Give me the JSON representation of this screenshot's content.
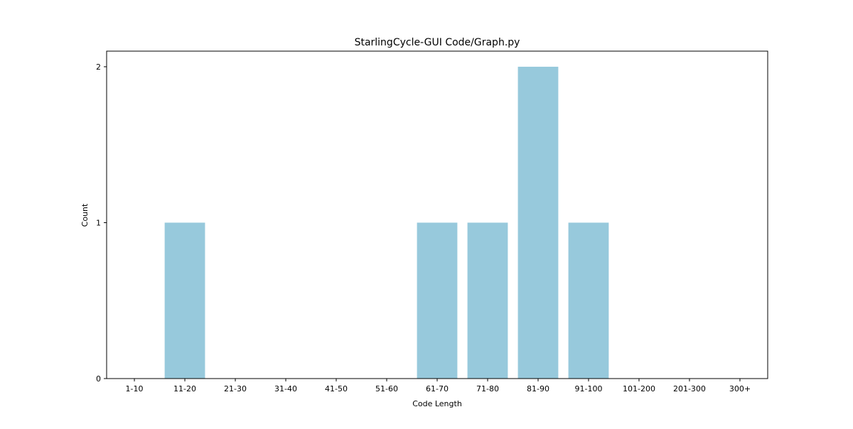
{
  "chart_data": {
    "type": "bar",
    "title": "StarlingCycle-GUI Code/Graph.py",
    "xlabel": "Code Length",
    "ylabel": "Count",
    "categories": [
      "1-10",
      "11-20",
      "21-30",
      "31-40",
      "41-50",
      "51-60",
      "61-70",
      "71-80",
      "81-90",
      "91-100",
      "101-200",
      "201-300",
      "300+"
    ],
    "values": [
      0,
      1,
      0,
      0,
      0,
      0,
      1,
      1,
      2,
      1,
      0,
      0,
      0
    ],
    "ylim": [
      0,
      2.1
    ],
    "yticks": [
      0,
      1,
      2
    ],
    "grid": false,
    "bar_color": "#97c9dc"
  }
}
